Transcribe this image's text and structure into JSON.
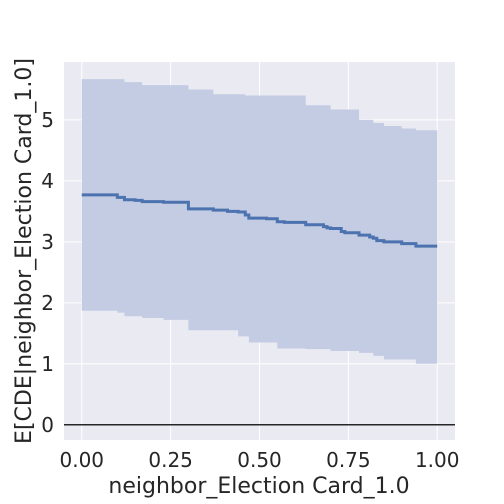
{
  "chart_data": {
    "type": "area",
    "xlabel": "neighbor_Election Card_1.0",
    "ylabel": "E[CDE|neighbor_Election Card_1.0]",
    "xlim": [
      -0.05,
      1.05
    ],
    "ylim": [
      -0.25,
      5.95
    ],
    "x_ticks": [
      0.0,
      0.25,
      0.5,
      0.75,
      1.0
    ],
    "x_tick_labels": [
      "0.00",
      "0.25",
      "0.50",
      "0.75",
      "1.00"
    ],
    "y_ticks": [
      0,
      1,
      2,
      3,
      4,
      5
    ],
    "y_tick_labels": [
      "0",
      "1",
      "2",
      "3",
      "4",
      "5"
    ],
    "grid": true,
    "reference_line_y": 0,
    "colors": {
      "background": "#EAEAF2",
      "grid": "#FFFFFF",
      "line": "#4C72B0",
      "band": "#C4CCE3",
      "zero_line": "#262626",
      "text": "#262626"
    },
    "series": [
      {
        "role": "estimate",
        "x": [
          0.0,
          0.1,
          0.12,
          0.15,
          0.17,
          0.23,
          0.29,
          0.3,
          0.37,
          0.41,
          0.44,
          0.46,
          0.47,
          0.52,
          0.55,
          0.57,
          0.63,
          0.68,
          0.69,
          0.7,
          0.73,
          0.74,
          0.78,
          0.81,
          0.82,
          0.83,
          0.85,
          0.9,
          0.94,
          1.0
        ],
        "y": [
          3.77,
          3.73,
          3.69,
          3.68,
          3.66,
          3.65,
          3.65,
          3.54,
          3.52,
          3.5,
          3.49,
          3.44,
          3.39,
          3.38,
          3.33,
          3.32,
          3.28,
          3.25,
          3.23,
          3.22,
          3.17,
          3.15,
          3.11,
          3.08,
          3.06,
          3.02,
          3.0,
          2.97,
          2.93,
          2.93
        ]
      },
      {
        "role": "upper_bound",
        "x": [
          0.0,
          0.12,
          0.17,
          0.3,
          0.37,
          0.46,
          0.63,
          0.7,
          0.78,
          0.82,
          0.85,
          0.9,
          0.94,
          1.0
        ],
        "y": [
          5.67,
          5.62,
          5.57,
          5.5,
          5.42,
          5.4,
          5.24,
          5.17,
          5.0,
          4.95,
          4.9,
          4.86,
          4.83,
          4.83
        ]
      },
      {
        "role": "lower_bound",
        "x": [
          0.0,
          0.1,
          0.12,
          0.17,
          0.23,
          0.3,
          0.44,
          0.47,
          0.55,
          0.63,
          0.7,
          0.78,
          0.82,
          0.85,
          0.94,
          1.0
        ],
        "y": [
          1.87,
          1.84,
          1.78,
          1.75,
          1.72,
          1.55,
          1.45,
          1.35,
          1.25,
          1.24,
          1.21,
          1.18,
          1.13,
          1.07,
          1.0,
          1.0
        ]
      }
    ]
  }
}
